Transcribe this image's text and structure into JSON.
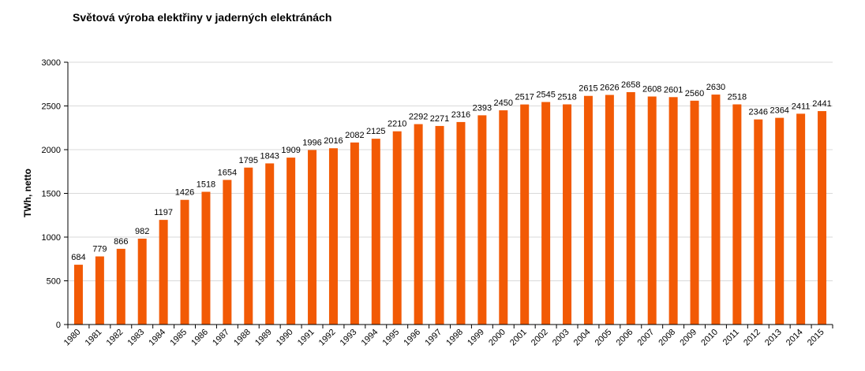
{
  "chart_data": {
    "type": "bar",
    "title": "Světová výroba elektřiny v jaderných elektránách",
    "xlabel": "",
    "ylabel": "TWh, netto",
    "ylim": [
      0,
      3000
    ],
    "yticks": [
      0,
      500,
      1000,
      1500,
      2000,
      2500,
      3000
    ],
    "grid": true,
    "legend": "none",
    "bar_color": "#f25a05",
    "categories": [
      "1980",
      "1981",
      "1982",
      "1983",
      "1984",
      "1985",
      "1986",
      "1987",
      "1988",
      "1989",
      "1990",
      "1991",
      "1992",
      "1993",
      "1994",
      "1995",
      "1996",
      "1997",
      "1998",
      "1999",
      "2000",
      "2001",
      "2002",
      "2003",
      "2004",
      "2005",
      "2006",
      "2007",
      "2008",
      "2009",
      "2010",
      "2011",
      "2012",
      "2013",
      "2014",
      "2015"
    ],
    "values": [
      684,
      779,
      866,
      982,
      1197,
      1426,
      1518,
      1654,
      1795,
      1843,
      1909,
      1996,
      2016,
      2082,
      2125,
      2210,
      2292,
      2271,
      2316,
      2393,
      2450,
      2517,
      2545,
      2518,
      2615,
      2626,
      2658,
      2608,
      2601,
      2560,
      2630,
      2518,
      2346,
      2364,
      2411,
      2441
    ]
  }
}
